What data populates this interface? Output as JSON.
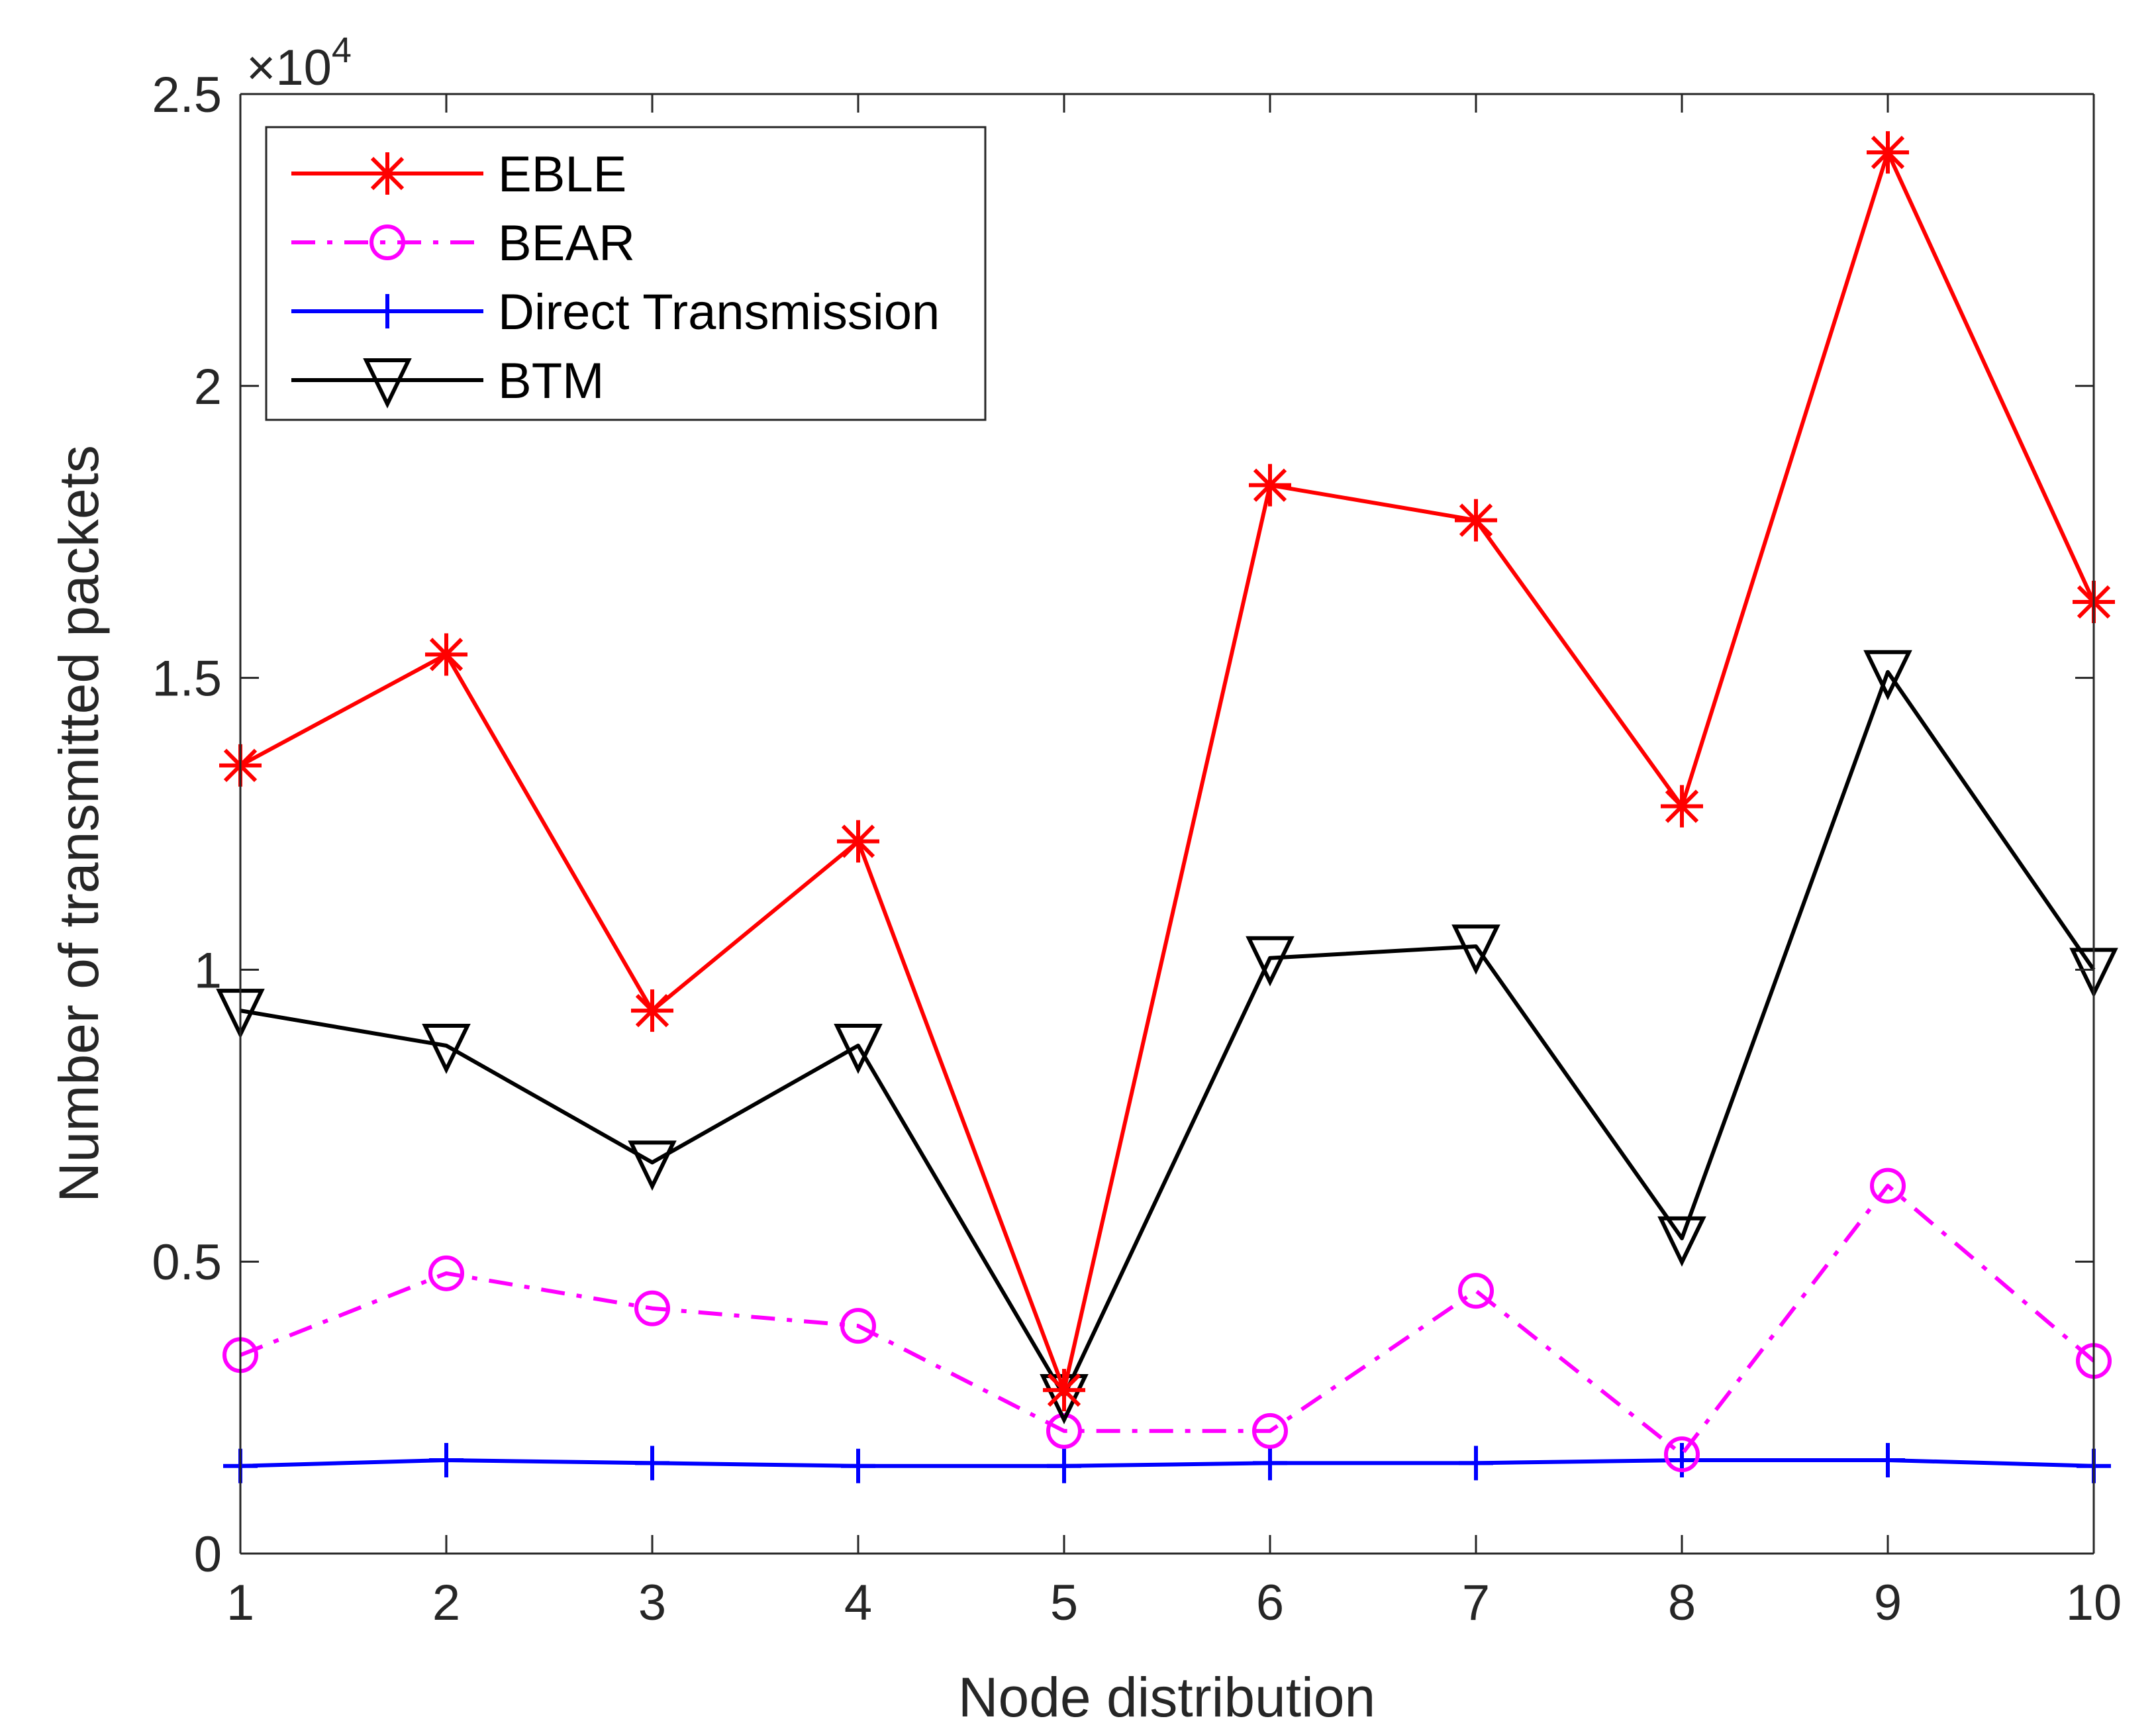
{
  "chart_data": {
    "type": "line",
    "title": "",
    "xlabel": "Node distribution",
    "ylabel": "Number of transmitted packets",
    "x": [
      1,
      2,
      3,
      4,
      5,
      6,
      7,
      8,
      9,
      10
    ],
    "xlim": [
      1,
      10
    ],
    "ylim": [
      0,
      25000
    ],
    "x_ticks": [
      "1",
      "2",
      "3",
      "4",
      "5",
      "6",
      "7",
      "8",
      "9",
      "10"
    ],
    "y_ticks": [
      "0",
      "0.5",
      "1",
      "1.5",
      "2",
      "2.5"
    ],
    "y_multiplier": {
      "base": "×10",
      "exponent": "4"
    },
    "grid": false,
    "legend_position": "top-left",
    "series": [
      {
        "name": "EBLE",
        "color": "#ff0000",
        "marker": "asterisk",
        "line": "solid",
        "values": [
          13500,
          15400,
          9300,
          12200,
          2800,
          18300,
          17700,
          12800,
          24000,
          16300
        ]
      },
      {
        "name": "BEAR",
        "color": "#ff00ff",
        "marker": "circle",
        "line": "dashdot",
        "values": [
          3400,
          4800,
          4200,
          3900,
          2100,
          2100,
          4500,
          1700,
          6300,
          3300
        ]
      },
      {
        "name": "Direct Transmission",
        "color": "#0000ff",
        "marker": "plus",
        "line": "solid",
        "values": [
          1500,
          1600,
          1550,
          1500,
          1500,
          1550,
          1550,
          1600,
          1600,
          1500
        ]
      },
      {
        "name": "BTM",
        "color": "#000000",
        "marker": "triangle-down",
        "line": "solid",
        "values": [
          9300,
          8700,
          6700,
          8700,
          2700,
          10200,
          10400,
          5400,
          15100,
          10000
        ]
      }
    ]
  }
}
